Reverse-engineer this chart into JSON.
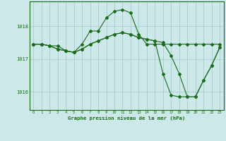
{
  "title": "Graphe pression niveau de la mer (hPa)",
  "bg_color": "#cce8e8",
  "grid_color": "#aacccc",
  "line_color": "#1a6b1a",
  "xlim": [
    -0.5,
    23.5
  ],
  "ylim": [
    1015.45,
    1018.75
  ],
  "yticks": [
    1016,
    1017,
    1018
  ],
  "xticks": [
    0,
    1,
    2,
    3,
    4,
    5,
    6,
    7,
    8,
    9,
    10,
    11,
    12,
    13,
    14,
    15,
    16,
    17,
    18,
    19,
    20,
    21,
    22,
    23
  ],
  "line1_x": [
    0,
    1,
    2,
    3,
    4,
    5,
    6,
    7,
    8,
    9,
    10,
    11,
    12,
    13,
    14,
    15,
    16,
    17,
    18,
    19,
    20,
    21,
    22,
    23
  ],
  "line1_y": [
    1017.45,
    1017.45,
    1017.4,
    1017.4,
    1017.25,
    1017.2,
    1017.45,
    1017.85,
    1017.85,
    1018.25,
    1018.45,
    1018.5,
    1018.4,
    1017.75,
    1017.45,
    1017.45,
    1017.45,
    1017.45,
    1017.45,
    1017.45,
    1017.45,
    1017.45,
    1017.45,
    1017.45
  ],
  "line2_x": [
    0,
    1,
    2,
    3,
    4,
    5,
    6,
    7,
    8,
    9,
    10,
    11,
    12,
    13,
    14,
    15,
    16,
    17,
    18,
    19,
    20,
    21,
    22,
    23
  ],
  "line2_y": [
    1017.45,
    1017.45,
    1017.4,
    1017.3,
    1017.25,
    1017.2,
    1017.3,
    1017.45,
    1017.55,
    1017.65,
    1017.75,
    1017.8,
    1017.75,
    1017.65,
    1017.6,
    1017.55,
    1017.5,
    1017.1,
    1016.55,
    1015.85,
    1015.85,
    1016.35,
    1016.8,
    1017.35
  ],
  "line3_x": [
    0,
    1,
    2,
    3,
    4,
    5,
    6,
    7,
    8,
    9,
    10,
    11,
    12,
    13,
    14,
    15,
    16,
    17,
    18,
    19,
    20,
    21,
    22,
    23
  ],
  "line3_y": [
    1017.45,
    1017.45,
    1017.4,
    1017.3,
    1017.25,
    1017.2,
    1017.3,
    1017.45,
    1017.55,
    1017.65,
    1017.75,
    1017.8,
    1017.75,
    1017.65,
    1017.6,
    1017.55,
    1016.55,
    1015.9,
    1015.85,
    1015.85,
    1015.85,
    1016.35,
    1016.8,
    1017.35
  ]
}
